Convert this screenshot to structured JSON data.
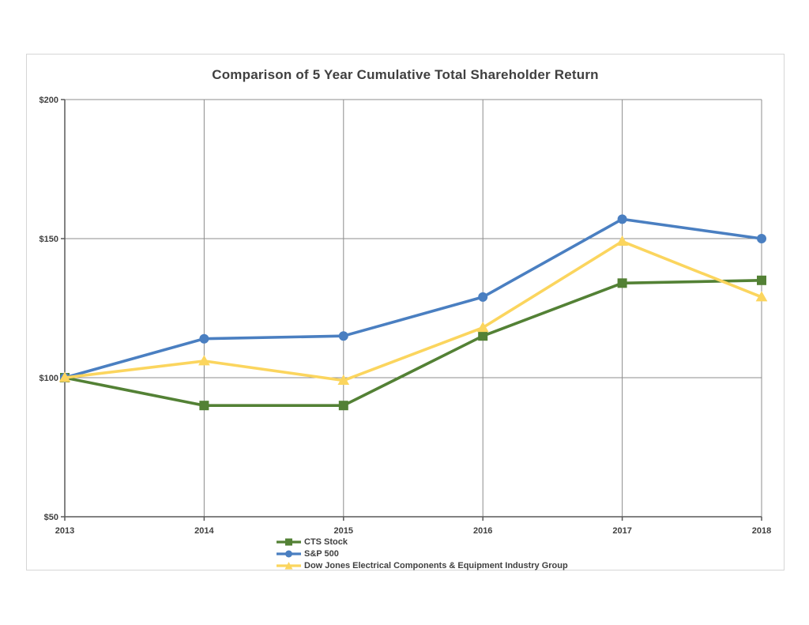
{
  "chart": {
    "frame_border_color": "#d6d6d6",
    "background_color": "#ffffff",
    "text_color": "#404040",
    "axis_color": "#595959",
    "gridline_color": "#8c8c8c"
  },
  "chart_data": {
    "type": "line",
    "title": "Comparison of 5 Year Cumulative Total Shareholder Return",
    "x": [
      "2013",
      "2014",
      "2015",
      "2016",
      "2017",
      "2018"
    ],
    "xlabel": "",
    "ylabel": "",
    "ylim": [
      50,
      200
    ],
    "yticks": [
      50,
      100,
      150,
      200
    ],
    "ytick_labels": [
      "$50",
      "$100",
      "$150",
      "$200"
    ],
    "grid": true,
    "legend_position": "bottom-center",
    "series": [
      {
        "name": "CTS Stock",
        "color": "#538135",
        "marker": "square",
        "values": [
          100,
          90,
          90,
          115,
          134,
          135
        ]
      },
      {
        "name": "S&P 500",
        "color": "#4a7fc1",
        "marker": "circle",
        "values": [
          100,
          114,
          115,
          129,
          157,
          150
        ]
      },
      {
        "name": "Dow Jones Electrical Components & Equipment Industry Group",
        "color": "#fbd55e",
        "marker": "triangle",
        "values": [
          100,
          106,
          99,
          118,
          149,
          129
        ]
      }
    ]
  }
}
